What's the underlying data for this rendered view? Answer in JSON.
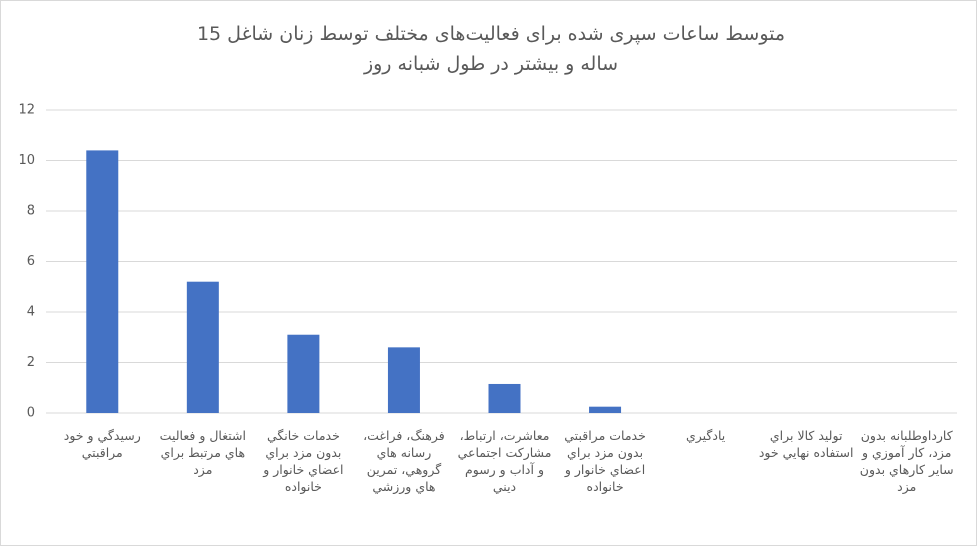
{
  "chart_data": {
    "type": "bar",
    "title": "متوسط ساعات سپری شده برای فعالیت‌های مختلف توسط زنان شاغل 15 ساله و بیشتر در طول شبانه روز",
    "categories": [
      "رسيدگي و خود مراقبتي",
      "اشتغال و فعاليت هاي مرتبط براي مزد",
      "خدمات خانگي بدون مزد براي اعضاي خانوار و خانواده",
      "فرهنگ، فراغت، رسانه هاي گروهي، تمرين هاي ورزشي",
      "معاشرت، ارتباط، مشاركت اجتماعي و آداب و رسوم ديني",
      "خدمات مراقبتي بدون مزد براي اعضاي خانوار و خانواده",
      "يادگيري",
      "توليد كالا براي استفاده نهايي خود",
      "كارداوطلبانه بدون مزد، كار آموزي و ساير كارهاي بدون مزد"
    ],
    "values": [
      10.4,
      5.2,
      3.1,
      2.6,
      1.15,
      0.25,
      0,
      0,
      0
    ],
    "color": "#4472c4",
    "ylim": [
      0,
      12
    ],
    "yticks": [
      0,
      2,
      4,
      6,
      8,
      10,
      12
    ],
    "grid": true
  }
}
